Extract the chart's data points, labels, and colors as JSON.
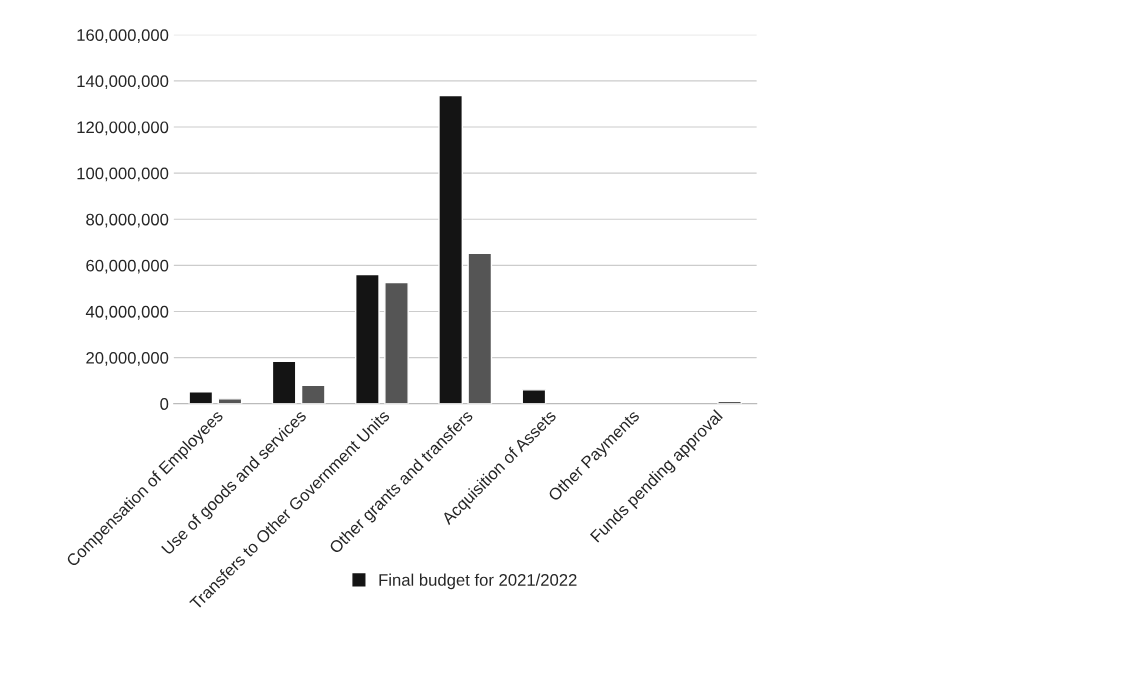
{
  "chart_data": {
    "type": "bar",
    "categories": [
      "Compensation of Employees",
      "Use of goods and services",
      "Transfers to Other Government Units",
      "Other grants and transfers",
      "Acquisition of Assets",
      "Other Payments",
      "Funds pending approval"
    ],
    "series": [
      {
        "name": "Final budget for 2021/2022",
        "color": "#141414",
        "values": [
          5200000,
          18400000,
          56000000,
          133600000,
          6000000,
          null,
          null
        ]
      },
      {
        "color": "#555555",
        "values": [
          2100000,
          8000000,
          52500000,
          65200000,
          null,
          null,
          1000000
        ]
      }
    ],
    "ylim": [
      0,
      160000000
    ],
    "yticks": [
      {
        "value": 0,
        "label": "0"
      },
      {
        "value": 20000000,
        "label": "20,000,000"
      },
      {
        "value": 40000000,
        "label": "40,000,000"
      },
      {
        "value": 60000000,
        "label": "60,000,000"
      },
      {
        "value": 80000000,
        "label": "80,000,000"
      },
      {
        "value": 100000000,
        "label": "100,000,000"
      },
      {
        "value": 120000000,
        "label": "120,000,000"
      },
      {
        "value": 140000000,
        "label": "140,000,000"
      },
      {
        "value": 160000000,
        "label": "160,000,000"
      }
    ],
    "grid": "y",
    "legend": "bottom"
  }
}
